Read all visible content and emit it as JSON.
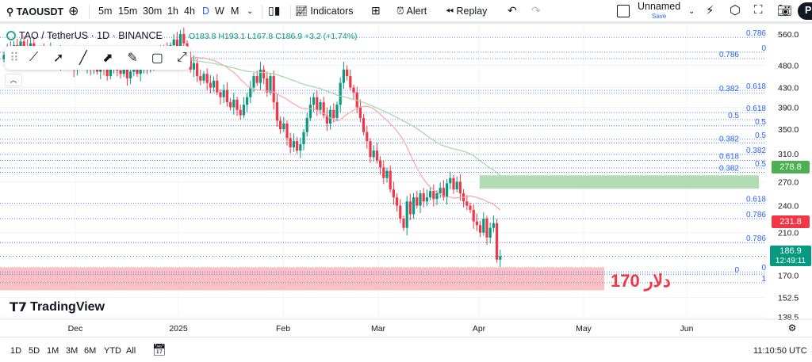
{
  "toolbar": {
    "symbol": "TAOUSDT",
    "intervals": [
      "5m",
      "15m",
      "30m",
      "1h",
      "4h",
      "D",
      "W",
      "M"
    ],
    "active_interval": "D",
    "indicators": "Indicators",
    "alert": "Alert",
    "replay": "Replay",
    "layout_name": "Unnamed",
    "save": "Save",
    "publish": "P"
  },
  "legend": {
    "title": "TAO / TetherUS · 1D · BINANCE",
    "open": "O183.8",
    "high": "H193.1",
    "low": "L167.8",
    "close": "C186.9",
    "change": "+3.2 (+1.74%)"
  },
  "price_axis": {
    "ticks": [
      "560.0",
      "480.0",
      "430.0",
      "390.0",
      "350.0",
      "310.0",
      "270.0",
      "240.0",
      "210.0",
      "170.0",
      "152.5",
      "138.5"
    ],
    "tick_values": [
      560,
      480,
      430,
      390,
      350,
      310,
      270,
      240,
      210,
      170,
      152.5,
      138.5
    ],
    "scale": "log"
  },
  "time_axis": [
    "Dec",
    "2025",
    "Feb",
    "Mar",
    "Apr",
    "May",
    "Jun"
  ],
  "price_tags": {
    "green": "278.8",
    "red": "231.8",
    "last": "186.9",
    "countdown": "12:49:11"
  },
  "colors": {
    "up": "#089981",
    "down": "#f23645",
    "fib": "#2962ff",
    "ma_fast": "#f7a5ab",
    "ma_slow": "#a5d6a7",
    "zone_green": "#a5d6a7",
    "zone_red": "#f9b6bb"
  },
  "fib_levels": [
    {
      "label": "0.786",
      "price": 551
    },
    {
      "label": "0",
      "price": 512
    },
    {
      "label": "0.786",
      "price": 496
    },
    {
      "label": "0.618",
      "price": 424
    },
    {
      "label": "0.382",
      "price": 419
    },
    {
      "label": "0.618",
      "price": 380
    },
    {
      "label": "0.5",
      "price": 367
    },
    {
      "label": "0.5",
      "price": 356
    },
    {
      "label": "0.5",
      "price": 333
    },
    {
      "label": "0.382",
      "price": 327
    },
    {
      "label": "0.382",
      "price": 309
    },
    {
      "label": "0.618",
      "price": 300
    },
    {
      "label": "0.5",
      "price": 289
    },
    {
      "label": "0.382",
      "price": 283
    },
    {
      "label": "0.618",
      "price": 243
    },
    {
      "label": "0.786",
      "price": 225
    },
    {
      "label": "0.786",
      "price": 200
    },
    {
      "label": "0",
      "price": 173
    },
    {
      "label": "0",
      "price": 171
    },
    {
      "label": "1",
      "price": 164
    }
  ],
  "zones": {
    "green": {
      "top": 278.8,
      "bottom": 261
    },
    "red": {
      "top": 177,
      "bottom": 158
    }
  },
  "annotation": "170 دلار",
  "closes": [
    505,
    520,
    498,
    530,
    515,
    540,
    525,
    510,
    535,
    520,
    500,
    515,
    490,
    505,
    520,
    498,
    485,
    510,
    495,
    480,
    495,
    470,
    485,
    500,
    478,
    490,
    470,
    488,
    465,
    480,
    470,
    455,
    478,
    490,
    468,
    460,
    475,
    450,
    465,
    470,
    460,
    475,
    490,
    470,
    500,
    485,
    510,
    495,
    520,
    505,
    530,
    545,
    520,
    560,
    535,
    500,
    470,
    485,
    455,
    445,
    460,
    440,
    430,
    445,
    420,
    410,
    425,
    400,
    390,
    405,
    385,
    375,
    395,
    410,
    430,
    455,
    440,
    470,
    450,
    420,
    455,
    400,
    365,
    350,
    360,
    335,
    320,
    330,
    315,
    325,
    345,
    370,
    395,
    410,
    385,
    400,
    375,
    360,
    385,
    370,
    395,
    440,
    470,
    455,
    430,
    420,
    390,
    370,
    345,
    330,
    305,
    315,
    300,
    290,
    275,
    285,
    260,
    250,
    240,
    225,
    215,
    245,
    230,
    250,
    240,
    255,
    245,
    250,
    258,
    248,
    255,
    262,
    250,
    268,
    275,
    260,
    270,
    255,
    245,
    240,
    235,
    222,
    218,
    210,
    225,
    205,
    215,
    220,
    183.8,
    186.9
  ],
  "logo": "TradingView",
  "bottom": {
    "ranges": [
      "1D",
      "5D",
      "1M",
      "3M",
      "6M",
      "YTD",
      "All"
    ],
    "clock": "11:10:50 UTC"
  }
}
